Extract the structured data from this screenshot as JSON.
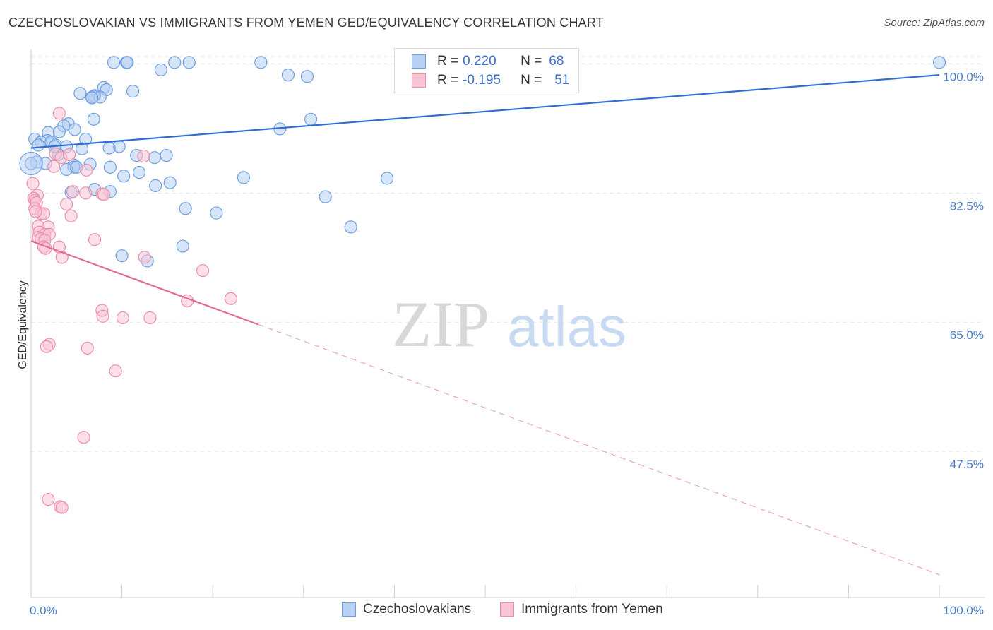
{
  "title": "CZECHOSLOVAKIAN VS IMMIGRANTS FROM YEMEN GED/EQUIVALENCY CORRELATION CHART",
  "source": "Source: ZipAtlas.com",
  "watermark": {
    "zip": "ZIP",
    "atlas": "atlas"
  },
  "legend": {
    "r_label": "R =",
    "n_label": "N =",
    "rows": [
      {
        "r": "0.220",
        "n": "68",
        "fill": "#b7d0f3",
        "stroke": "#6f9fe0"
      },
      {
        "r": "-0.195",
        "n": "51",
        "fill": "#f9c4d5",
        "stroke": "#ec8fab"
      }
    ]
  },
  "bottom_legend": [
    "Czechoslovakians",
    "Immigrants from Yemen"
  ],
  "chart_data": {
    "type": "scatter",
    "title": "CZECHOSLOVAKIAN VS IMMIGRANTS FROM YEMEN GED/EQUIVALENCY CORRELATION CHART",
    "xlabel": "",
    "ylabel": "GED/Equivalency",
    "xlim": [
      0,
      100
    ],
    "ylim": [
      30,
      101
    ],
    "x_tick_labels": [
      "0.0%",
      "100.0%"
    ],
    "y_ticks": [
      100.0,
      82.5,
      65.0,
      47.5
    ],
    "y_tick_labels": [
      "100.0%",
      "82.5%",
      "65.0%",
      "47.5%"
    ],
    "series": [
      {
        "name": "Czechoslovakians",
        "color": "#6f9fe0",
        "fill": "#b7d0f3",
        "trend": {
          "x0": 0,
          "y0": 88.6,
          "x1": 100,
          "y1": 98.5,
          "dashed_from": null
        },
        "points": [
          [
            9.1,
            100.2
          ],
          [
            10.5,
            100.2
          ],
          [
            10.6,
            100.2
          ],
          [
            15.8,
            100.2
          ],
          [
            17.4,
            100.2
          ],
          [
            25.3,
            100.2
          ],
          [
            100,
            100.2
          ],
          [
            14.3,
            99.2
          ],
          [
            28.3,
            98.5
          ],
          [
            30.4,
            98.3
          ],
          [
            8.0,
            96.8
          ],
          [
            8.3,
            96.5
          ],
          [
            11.2,
            96.3
          ],
          [
            5.4,
            96.0
          ],
          [
            7.0,
            95.7
          ],
          [
            6.7,
            95.5
          ],
          [
            6.9,
            95.6
          ],
          [
            7.6,
            95.5
          ],
          [
            6.7,
            95.4
          ],
          [
            6.9,
            92.5
          ],
          [
            30.8,
            92.5
          ],
          [
            4.1,
            91.9
          ],
          [
            3.6,
            91.6
          ],
          [
            27.4,
            91.2
          ],
          [
            4.8,
            91.1
          ],
          [
            1.9,
            90.7
          ],
          [
            3.1,
            90.8
          ],
          [
            0.4,
            89.8
          ],
          [
            6.0,
            89.8
          ],
          [
            1.8,
            89.6
          ],
          [
            1.1,
            89.4
          ],
          [
            2.2,
            89.4
          ],
          [
            0.8,
            89.0
          ],
          [
            2.7,
            89.0
          ],
          [
            3.9,
            88.8
          ],
          [
            9.7,
            88.8
          ],
          [
            8.6,
            88.6
          ],
          [
            5.6,
            88.5
          ],
          [
            3.0,
            87.7
          ],
          [
            14.9,
            87.6
          ],
          [
            11.6,
            87.6
          ],
          [
            13.6,
            87.3
          ],
          [
            0.6,
            86.7
          ],
          [
            1.6,
            86.5
          ],
          [
            6.5,
            86.4
          ],
          [
            4.7,
            86.3
          ],
          [
            4.7,
            86.0
          ],
          [
            8.7,
            86.0
          ],
          [
            3.9,
            85.7
          ],
          [
            11.9,
            85.3
          ],
          [
            10.2,
            84.8
          ],
          [
            23.4,
            84.6
          ],
          [
            39.2,
            84.5
          ],
          [
            15.3,
            83.9
          ],
          [
            13.7,
            83.5
          ],
          [
            7.0,
            83.0
          ],
          [
            8.7,
            82.7
          ],
          [
            4.4,
            82.6
          ],
          [
            32.4,
            82.0
          ],
          [
            17.0,
            80.4
          ],
          [
            20.4,
            79.8
          ],
          [
            35.2,
            77.9
          ],
          [
            16.7,
            75.3
          ],
          [
            10.0,
            74.0
          ],
          [
            12.8,
            73.3
          ],
          [
            0.0,
            86.5
          ],
          [
            5.0,
            86.0
          ],
          [
            2.6,
            88.8
          ]
        ]
      },
      {
        "name": "Immigrants from Yemen",
        "color": "#ec8fab",
        "fill": "#f9c4d5",
        "trend": {
          "x0": 0,
          "y0": 76.0,
          "x1": 100,
          "y1": 30.8,
          "dashed_from": 25.0
        },
        "points": [
          [
            3.1,
            93.3
          ],
          [
            12.4,
            87.5
          ],
          [
            2.7,
            87.8
          ],
          [
            3.3,
            87.3
          ],
          [
            4.2,
            87.7
          ],
          [
            2.5,
            86.1
          ],
          [
            6.1,
            85.6
          ],
          [
            0.2,
            83.8
          ],
          [
            4.6,
            82.7
          ],
          [
            7.8,
            82.4
          ],
          [
            8.0,
            82.3
          ],
          [
            0.7,
            82.2
          ],
          [
            0.3,
            81.8
          ],
          [
            0.4,
            81.5
          ],
          [
            0.6,
            81.2
          ],
          [
            3.9,
            81.0
          ],
          [
            0.4,
            80.4
          ],
          [
            1.1,
            79.7
          ],
          [
            1.4,
            79.7
          ],
          [
            4.4,
            79.4
          ],
          [
            0.8,
            78.0
          ],
          [
            1.9,
            77.9
          ],
          [
            0.9,
            77.2
          ],
          [
            1.5,
            76.9
          ],
          [
            2.0,
            76.9
          ],
          [
            0.8,
            76.5
          ],
          [
            1.1,
            76.3
          ],
          [
            1.5,
            76.1
          ],
          [
            7.0,
            76.2
          ],
          [
            1.4,
            75.2
          ],
          [
            1.6,
            75.0
          ],
          [
            3.1,
            75.2
          ],
          [
            3.4,
            73.8
          ],
          [
            12.5,
            73.8
          ],
          [
            18.9,
            72.0
          ],
          [
            7.8,
            66.6
          ],
          [
            7.9,
            65.8
          ],
          [
            10.1,
            65.6
          ],
          [
            13.1,
            65.6
          ],
          [
            2.0,
            62.0
          ],
          [
            1.7,
            61.7
          ],
          [
            6.2,
            61.5
          ],
          [
            9.3,
            58.4
          ],
          [
            5.8,
            49.4
          ],
          [
            1.9,
            41.0
          ],
          [
            3.2,
            40.0
          ],
          [
            3.4,
            39.9
          ],
          [
            17.2,
            67.9
          ],
          [
            22.0,
            68.2
          ],
          [
            6.0,
            82.5
          ],
          [
            0.5,
            80.0
          ]
        ]
      }
    ]
  }
}
